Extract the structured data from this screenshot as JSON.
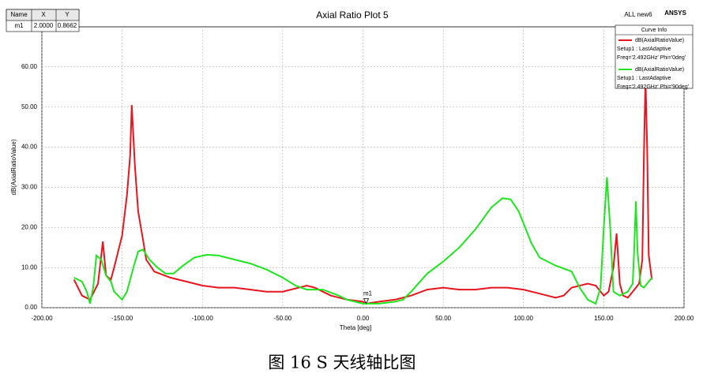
{
  "chart_data": {
    "type": "line",
    "title": "Axial Ratio Plot 5",
    "top_right_label": "ALL new6",
    "brand": "ANSYS",
    "xlabel": "Theta [deg]",
    "ylabel": "dB(AxialRatioValue)",
    "xlim": [
      -200,
      200
    ],
    "ylim": [
      0,
      70
    ],
    "xticks": [
      {
        "value": -200,
        "label": "-200.00"
      },
      {
        "value": -150,
        "label": "-150.00"
      },
      {
        "value": -100,
        "label": "-100.00"
      },
      {
        "value": -50,
        "label": "-50.00"
      },
      {
        "value": 0,
        "label": "0.00"
      },
      {
        "value": 50,
        "label": "50.00"
      },
      {
        "value": 100,
        "label": "100.00"
      },
      {
        "value": 150,
        "label": "150.00"
      },
      {
        "value": 200,
        "label": "200.00"
      }
    ],
    "yticks": [
      {
        "value": 0,
        "label": "0.00"
      },
      {
        "value": 10,
        "label": "10.00"
      },
      {
        "value": 20,
        "label": "20.00"
      },
      {
        "value": 30,
        "label": "30.00"
      },
      {
        "value": 40,
        "label": "40.00"
      },
      {
        "value": 50,
        "label": "50.00"
      },
      {
        "value": 60,
        "label": "60.00"
      }
    ],
    "grid": true,
    "legend_title": "Curve Info",
    "series": [
      {
        "name": "dB(AxialRatioValue)",
        "setup": "Setup1 : LastAdaptive",
        "freq": "Freq='2.492GHz' Phi='0deg'",
        "color": "#e8141e",
        "x": [
          -180,
          -175,
          -170,
          -165,
          -162,
          -160,
          -157,
          -155,
          -150,
          -147,
          -145,
          -144,
          -142,
          -140,
          -137,
          -135,
          -130,
          -120,
          -110,
          -100,
          -90,
          -80,
          -70,
          -60,
          -50,
          -40,
          -35,
          -30,
          -25,
          -20,
          -10,
          0,
          2,
          10,
          20,
          30,
          40,
          50,
          60,
          70,
          80,
          90,
          100,
          110,
          120,
          125,
          130,
          140,
          145,
          150,
          153,
          156,
          158,
          160,
          162,
          165,
          168,
          172,
          174,
          175,
          176,
          177,
          178,
          180
        ],
        "values": [
          7,
          3,
          2,
          6,
          16.5,
          8,
          7,
          10,
          18,
          28,
          38,
          50.5,
          35,
          24,
          17,
          12,
          9,
          7.5,
          6.5,
          5.5,
          5,
          5,
          4.5,
          4,
          4,
          5,
          5.5,
          5,
          4,
          3,
          2,
          1.5,
          1,
          1.5,
          2,
          3,
          4.5,
          5,
          4.5,
          4.5,
          5,
          5,
          4.5,
          3.5,
          2.5,
          3,
          5,
          6,
          5.5,
          3,
          4,
          10,
          18.5,
          6,
          3,
          2.5,
          4,
          6,
          12,
          38,
          57,
          40,
          13,
          7
        ]
      },
      {
        "name": "dB(AxialRatioValue)",
        "setup": "Setup1 : LastAdaptive",
        "freq": "Freq='2.492GHz' Phi='90deg'",
        "color": "#1ee61e",
        "x": [
          -180,
          -175,
          -172,
          -170,
          -168,
          -166,
          -163,
          -160,
          -157,
          -155,
          -150,
          -147,
          -143,
          -140,
          -137,
          -133,
          -128,
          -123,
          -118,
          -112,
          -105,
          -97,
          -90,
          -80,
          -70,
          -60,
          -50,
          -42,
          -35,
          -25,
          -15,
          -10,
          0,
          10,
          20,
          25,
          30,
          40,
          50,
          60,
          70,
          80,
          87,
          92,
          97,
          105,
          110,
          120,
          130,
          135,
          140,
          145,
          148,
          150,
          152,
          154,
          156,
          160,
          165,
          168,
          169,
          170,
          171,
          173,
          175,
          178,
          180
        ],
        "values": [
          7.5,
          6.5,
          4,
          1,
          5,
          13,
          12,
          8,
          6.5,
          4,
          2,
          4,
          10,
          14,
          14.5,
          12,
          10,
          8.5,
          8.5,
          10.5,
          12.5,
          13.2,
          13,
          12,
          11,
          9.5,
          7.5,
          5.5,
          4.5,
          4.5,
          3,
          2,
          1,
          1,
          1.5,
          2,
          4,
          8.5,
          11.5,
          15,
          19.5,
          25,
          27.3,
          27,
          24,
          16,
          12.5,
          10.5,
          9,
          5,
          2,
          1,
          5,
          20,
          32.5,
          20,
          4,
          3,
          4,
          6,
          15,
          26.5,
          14,
          5.5,
          5,
          6.5,
          7.5
        ]
      }
    ],
    "marker": {
      "header": [
        "Name",
        "X",
        "Y"
      ],
      "name": "m1",
      "x": {
        "value": 2,
        "label": "2.0000"
      },
      "y": 0.8662
    }
  },
  "caption": "图 16 S 天线轴比图"
}
